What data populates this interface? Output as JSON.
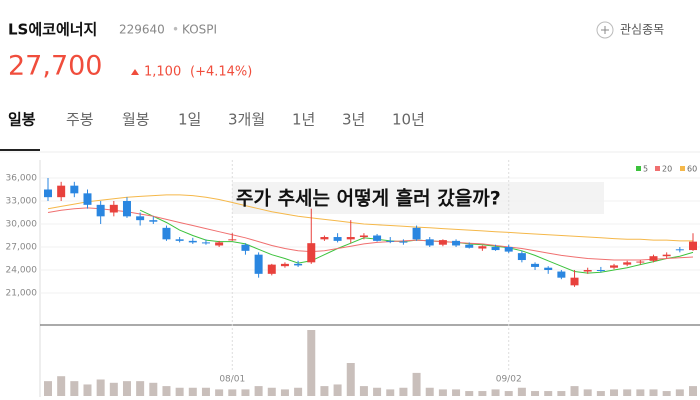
{
  "header": {
    "name": "LS에코에너지",
    "code": "229640",
    "market": "KOSPI",
    "watch": "관심종목",
    "price": "27,700",
    "change": "1,100",
    "change_pct": "(+4.14%)"
  },
  "tabs": [
    "일봉",
    "주봉",
    "월봉",
    "1일",
    "3개월",
    "1년",
    "3년",
    "10년"
  ],
  "chart_data": {
    "type": "candlestick",
    "annotation": "주가 추세는 어떻게 흘러 갔을까?",
    "up_color": "#e8413c",
    "down_color": "#2a86e0",
    "categories": [
      null,
      null,
      null,
      null,
      null,
      null,
      null,
      null,
      null,
      null,
      null,
      null,
      null,
      null,
      "08/01",
      null,
      null,
      null,
      null,
      null,
      null,
      null,
      null,
      null,
      null,
      null,
      null,
      null,
      null,
      null,
      null,
      null,
      null,
      null,
      null,
      "09/02",
      null,
      null,
      null,
      null,
      null,
      null,
      null,
      null,
      null,
      null,
      null,
      null,
      null,
      null
    ],
    "open": [
      34500,
      33500,
      35000,
      34000,
      32500,
      31500,
      33000,
      31000,
      30500,
      29500,
      28000,
      27800,
      27600,
      27200,
      28000,
      27300,
      26000,
      23500,
      24500,
      24800,
      25000,
      28000,
      28300,
      28000,
      28300,
      28500,
      27800,
      27700,
      29500,
      28000,
      27300,
      27800,
      27300,
      26800,
      27000,
      27000,
      26200,
      24800,
      24300,
      23800,
      22000,
      23800,
      24000,
      24300,
      24700,
      25000,
      25200,
      25800,
      26700,
      26600
    ],
    "high": [
      36000,
      35500,
      35500,
      34500,
      33000,
      33000,
      33500,
      31500,
      31000,
      29800,
      28300,
      28200,
      28000,
      27800,
      28800,
      27500,
      26300,
      24800,
      25000,
      25200,
      32000,
      28500,
      28800,
      30500,
      28800,
      28700,
      28300,
      28000,
      29800,
      28300,
      28000,
      28000,
      27600,
      27200,
      27300,
      27300,
      26500,
      25000,
      24500,
      24000,
      24000,
      24300,
      24400,
      24800,
      25200,
      25300,
      26000,
      26300,
      27000,
      28800
    ],
    "low": [
      33000,
      33000,
      33500,
      32000,
      30000,
      31000,
      30800,
      29800,
      30000,
      27800,
      27600,
      27400,
      27300,
      27000,
      27800,
      26000,
      23000,
      23300,
      24300,
      24400,
      24800,
      27800,
      27600,
      27500,
      28000,
      27700,
      27500,
      27300,
      27800,
      27000,
      27100,
      27000,
      26800,
      26500,
      26500,
      26200,
      25000,
      24000,
      23500,
      22800,
      21800,
      23500,
      23700,
      24100,
      24500,
      24700,
      25000,
      25500,
      26300,
      26500
    ],
    "close": [
      33500,
      35000,
      34000,
      32500,
      31000,
      32500,
      31000,
      30500,
      30300,
      28000,
      27800,
      27600,
      27500,
      27600,
      28000,
      26500,
      23500,
      24700,
      24800,
      24600,
      27500,
      28300,
      27800,
      28300,
      28500,
      27800,
      27700,
      27600,
      28000,
      27200,
      27900,
      27200,
      26900,
      27100,
      26600,
      26400,
      25300,
      24400,
      24000,
      23000,
      23000,
      24000,
      23900,
      24600,
      25000,
      25100,
      25800,
      26000,
      26600,
      27700
    ],
    "volume": [
      9,
      12,
      9,
      7,
      10,
      8,
      9,
      9,
      8,
      6,
      5,
      5,
      5,
      4,
      4,
      4,
      6,
      5,
      4,
      5,
      40,
      6,
      7,
      20,
      6,
      5,
      4,
      5,
      14,
      5,
      4,
      4,
      3,
      3,
      4,
      3,
      5,
      3,
      3,
      3,
      6,
      4,
      3,
      4,
      4,
      4,
      4,
      3,
      4,
      6
    ],
    "series": [
      {
        "name": "5",
        "color": "#3cc23c",
        "values": [
          null,
          null,
          null,
          null,
          null,
          null,
          null,
          31800,
          31000,
          30200,
          29200,
          28500,
          27900,
          27700,
          27700,
          27400,
          26700,
          26000,
          25500,
          24900,
          25200,
          26000,
          26800,
          27500,
          28200,
          28000,
          27800,
          27700,
          27900,
          27800,
          27700,
          27600,
          27400,
          27300,
          27100,
          26900,
          26500,
          25900,
          25200,
          24500,
          23800,
          23600,
          23700,
          24000,
          24300,
          24700,
          25100,
          25500,
          25800,
          26300
        ]
      },
      {
        "name": "20",
        "color": "#f07070",
        "values": [
          31500,
          31800,
          32000,
          32100,
          32000,
          31800,
          31600,
          31300,
          31000,
          30600,
          30200,
          29800,
          29400,
          29000,
          28600,
          28200,
          27700,
          27200,
          26800,
          26500,
          26400,
          26500,
          26800,
          27100,
          27400,
          27600,
          27700,
          27800,
          27900,
          27800,
          27700,
          27600,
          27500,
          27400,
          27200,
          27000,
          26800,
          26500,
          26200,
          25900,
          25700,
          25500,
          25400,
          25300,
          25300,
          25300,
          25400,
          25500,
          25600,
          25700
        ]
      },
      {
        "name": "60",
        "color": "#f5b84a",
        "values": [
          32000,
          32300,
          32600,
          32900,
          33100,
          33300,
          33500,
          33600,
          33700,
          33800,
          33800,
          33700,
          33500,
          33200,
          32800,
          32400,
          32000,
          31600,
          31300,
          31000,
          30800,
          30600,
          30400,
          30200,
          30000,
          29900,
          29800,
          29700,
          29600,
          29500,
          29400,
          29300,
          29200,
          29100,
          29000,
          28900,
          28800,
          28700,
          28600,
          28500,
          28400,
          28300,
          28200,
          28100,
          28000,
          28000,
          27900,
          27900,
          27800,
          27800
        ]
      }
    ],
    "ylim": [
      21000,
      36000
    ],
    "yticks": [
      {
        "value": 36000,
        "label": "36,000"
      },
      {
        "value": 33000,
        "label": "33,000"
      },
      {
        "value": 30000,
        "label": "30,000"
      },
      {
        "value": 27000,
        "label": "27,000"
      },
      {
        "value": 24000,
        "label": "24,000"
      },
      {
        "value": 21000,
        "label": "21,000"
      }
    ],
    "grid": true
  }
}
